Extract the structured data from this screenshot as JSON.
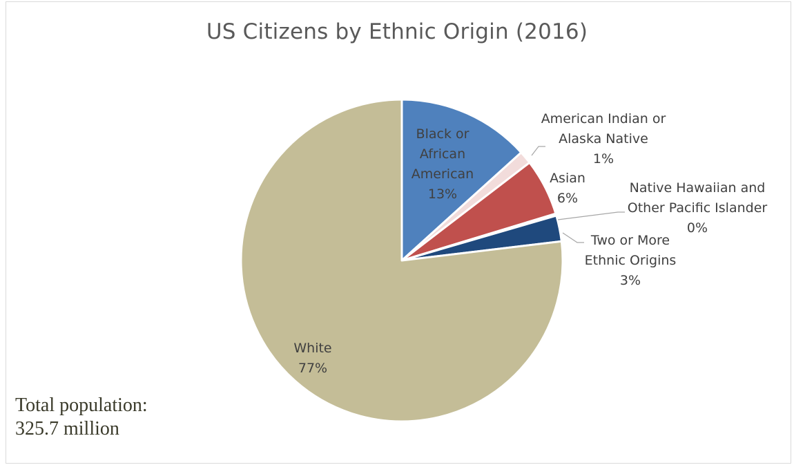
{
  "chart_data": {
    "type": "pie",
    "title": "US Citizens by Ethnic Origin (2016)",
    "slices": [
      {
        "label_lines": [
          "Black or",
          "African",
          "American"
        ],
        "percent_label": "13%",
        "value": 13.3,
        "color": "#4f81bd",
        "label_color": "#404040",
        "leader": false
      },
      {
        "label_lines": [
          "American Indian or",
          "Alaska Native"
        ],
        "percent_label": "1%",
        "value": 1.3,
        "color": "#f2dcdb",
        "label_color": "#404040",
        "leader": true
      },
      {
        "label_lines": [
          "Asian"
        ],
        "percent_label": "6%",
        "value": 5.7,
        "color": "#c0504d",
        "label_color": "#404040",
        "leader": false
      },
      {
        "label_lines": [
          "Native Hawaiian and",
          "Other Pacific Islander"
        ],
        "percent_label": "0%",
        "value": 0.2,
        "color": "#7f7f7f",
        "label_color": "#404040",
        "leader": true
      },
      {
        "label_lines": [
          "Two or More",
          "Ethnic Origins"
        ],
        "percent_label": "3%",
        "value": 2.6,
        "color": "#1f497d",
        "label_color": "#404040",
        "leader": true
      },
      {
        "label_lines": [
          "White"
        ],
        "percent_label": "77%",
        "value": 76.9,
        "color": "#c4bd97",
        "label_color": "#404040",
        "leader": false
      }
    ],
    "start_angle_deg": 0,
    "direction": "clockwise",
    "legend": "none"
  },
  "note": {
    "line1": "Total population:",
    "line2": "325.7 million"
  }
}
